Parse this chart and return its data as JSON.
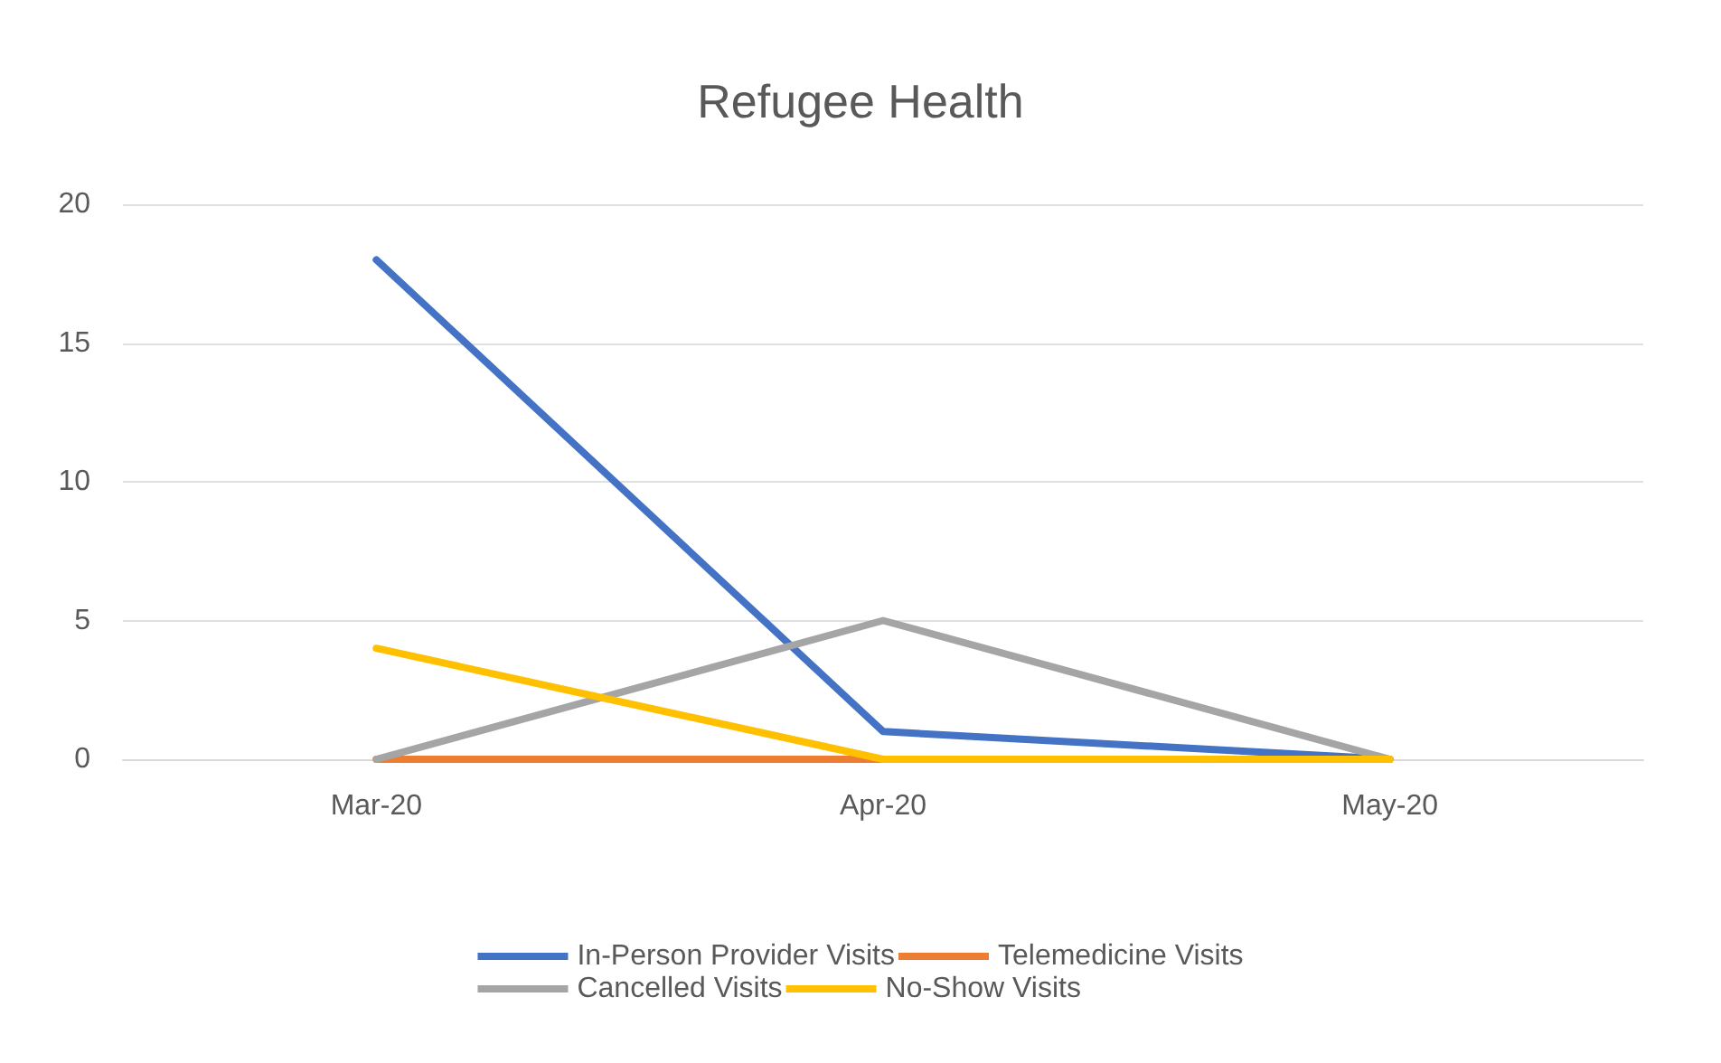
{
  "chart_data": {
    "type": "line",
    "title": "Refugee Health",
    "categories": [
      "Mar-20",
      "Apr-20",
      "May-20"
    ],
    "series": [
      {
        "name": "In-Person Provider Visits",
        "color": "#4472c4",
        "values": [
          18,
          1,
          0
        ]
      },
      {
        "name": "Telemedicine Visits",
        "color": "#ed7d31",
        "values": [
          0,
          0,
          null
        ]
      },
      {
        "name": "Cancelled Visits",
        "color": "#a5a5a5",
        "values": [
          0,
          5,
          0
        ]
      },
      {
        "name": "No-Show Visits",
        "color": "#ffc000",
        "values": [
          4,
          0,
          0
        ]
      }
    ],
    "ylim": [
      0,
      20
    ],
    "yticks": [
      0,
      5,
      10,
      15,
      20
    ],
    "grid": "y",
    "legend": "bottom",
    "marker": "none",
    "line_style": "solid"
  }
}
